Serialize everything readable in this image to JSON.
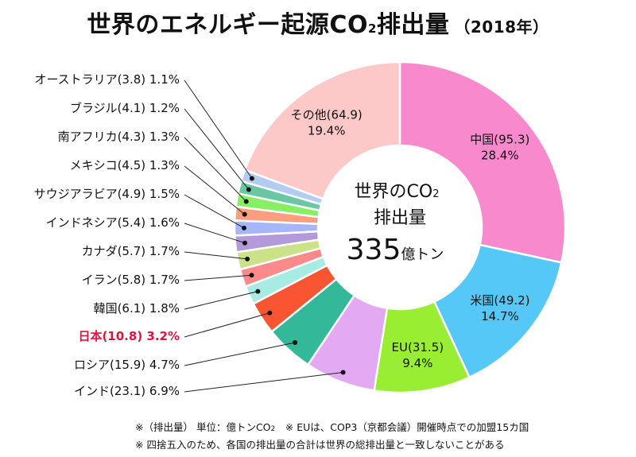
{
  "title": {
    "main": "世界のエネルギー起源CO",
    "sub": "2",
    "tail": "排出量",
    "year": "（2018年）"
  },
  "chart_data": {
    "type": "pie",
    "title": "世界のエネルギー起源CO2排出量（2018年）",
    "center_label": {
      "line1": "世界のCO",
      "line1_sub": "2",
      "line2": "排出量",
      "value": "335",
      "unit": "億トン"
    },
    "slices": [
      {
        "name": "中国",
        "value": 95.3,
        "percent": "28.4%",
        "color": "#f989cd",
        "label_pos": "inside",
        "text_color": "#111111"
      },
      {
        "name": "米国",
        "value": 49.2,
        "percent": "14.7%",
        "color": "#55c8f7",
        "label_pos": "inside",
        "text_color": "#111111"
      },
      {
        "name": "EU",
        "value": 31.5,
        "percent": "9.4%",
        "color": "#99ee33",
        "label_pos": "inside",
        "text_color": "#111111"
      },
      {
        "name": "インド",
        "value": 23.1,
        "percent": "6.9%",
        "color": "#e3aaf3",
        "label_pos": "outside",
        "text_color": "#111111"
      },
      {
        "name": "ロシア",
        "value": 15.9,
        "percent": "4.7%",
        "color": "#33b89a",
        "label_pos": "outside",
        "text_color": "#111111"
      },
      {
        "name": "日本",
        "value": 10.8,
        "percent": "3.2%",
        "color": "#fa5533",
        "label_pos": "outside",
        "text_color": "#e0143c"
      },
      {
        "name": "韓国",
        "value": 6.1,
        "percent": "1.8%",
        "color": "#a6ece3",
        "label_pos": "outside",
        "text_color": "#111111"
      },
      {
        "name": "イラン",
        "value": 5.8,
        "percent": "1.7%",
        "color": "#fb8a8a",
        "label_pos": "outside",
        "text_color": "#111111"
      },
      {
        "name": "カナダ",
        "value": 5.7,
        "percent": "1.7%",
        "color": "#cce289",
        "label_pos": "outside",
        "text_color": "#111111"
      },
      {
        "name": "インドネシア",
        "value": 5.4,
        "percent": "1.6%",
        "color": "#b49ad9",
        "label_pos": "outside",
        "text_color": "#111111"
      },
      {
        "name": "サウジアラビア",
        "value": 4.9,
        "percent": "1.5%",
        "color": "#a7b5fa",
        "label_pos": "outside",
        "text_color": "#111111"
      },
      {
        "name": "メキシコ",
        "value": 4.5,
        "percent": "1.3%",
        "color": "#fa9e80",
        "label_pos": "outside",
        "text_color": "#111111"
      },
      {
        "name": "南アフリカ",
        "value": 4.3,
        "percent": "1.3%",
        "color": "#88ee66",
        "label_pos": "outside",
        "text_color": "#111111"
      },
      {
        "name": "ブラジル",
        "value": 4.1,
        "percent": "1.2%",
        "color": "#6ac7a4",
        "label_pos": "outside",
        "text_color": "#111111"
      },
      {
        "name": "オーストラリア",
        "value": 3.8,
        "percent": "1.1%",
        "color": "#b5ccf2",
        "label_pos": "outside",
        "text_color": "#111111"
      },
      {
        "name": "その他",
        "value": 64.9,
        "percent": "19.4%",
        "color": "#fcc8c8",
        "label_pos": "inside",
        "text_color": "#111111"
      }
    ]
  },
  "notes": {
    "line1": "※（排出量） 単位：億トンCO",
    "line1_sub": "2",
    "line1_tail": "　※ EUは、COP3（京都会議）開催時点での加盟15カ国",
    "line2": "※ 四捨五入のため、各国の排出量の合計は世界の総排出量と一致しないことがある"
  }
}
